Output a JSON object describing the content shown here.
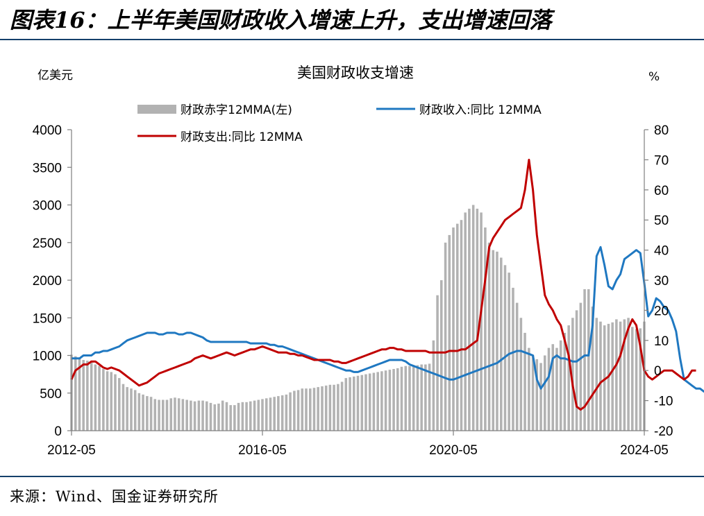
{
  "figure": {
    "title": "图表16：上半年美国财政收入增速上升，支出增速回落",
    "source": "来源：Wind、国金证券研究所"
  },
  "chart_data": {
    "type": "bar+line",
    "title": "美国财政收支增速",
    "ylabel_left": "亿美元",
    "ylabel_right": "%",
    "ylim_left": [
      0,
      4000
    ],
    "ylim_right": [
      -20,
      80
    ],
    "yticks_left": [
      "0",
      "500",
      "1000",
      "1500",
      "2000",
      "2500",
      "3000",
      "3500",
      "4000"
    ],
    "yticks_right": [
      "-20",
      "-10",
      "0",
      "10",
      "20",
      "30",
      "40",
      "50",
      "60",
      "70",
      "80"
    ],
    "xticks": [
      "2012-05",
      "2016-05",
      "2020-05",
      "2024-05"
    ],
    "legend": [
      "财政赤字12MMA(左)",
      "财政收入:同比 12MMA",
      "财政支出:同比 12MMA"
    ],
    "legend_position": "top",
    "colors": {
      "deficit": "#b2b2b2",
      "revenue": "#1f78c1",
      "spending": "#c00000"
    },
    "series": [
      {
        "name": "财政赤字12MMA(左)",
        "axis": "left",
        "type": "bar",
        "start": "2012-05",
        "values": [
          1010,
          990,
          960,
          940,
          930,
          920,
          880,
          860,
          820,
          790,
          780,
          750,
          700,
          620,
          580,
          560,
          540,
          500,
          480,
          460,
          450,
          420,
          410,
          410,
          410,
          430,
          440,
          430,
          420,
          410,
          400,
          390,
          400,
          400,
          390,
          370,
          350,
          360,
          400,
          380,
          340,
          340,
          370,
          380,
          380,
          390,
          400,
          410,
          420,
          430,
          440,
          450,
          460,
          470,
          480,
          510,
          530,
          540,
          560,
          560,
          560,
          570,
          580,
          590,
          600,
          610,
          610,
          620,
          650,
          700,
          710,
          720,
          730,
          740,
          750,
          760,
          770,
          780,
          790,
          800,
          810,
          820,
          830,
          850,
          860,
          860,
          870,
          870,
          880,
          880,
          890,
          1200,
          1800,
          2000,
          2500,
          2600,
          2700,
          2750,
          2800,
          2900,
          2950,
          3000,
          2950,
          2900,
          2700,
          2500,
          2400,
          2380,
          2300,
          2200,
          2100,
          1900,
          1700,
          1500,
          1300,
          1100,
          1000,
          950,
          900,
          1000,
          1100,
          1150,
          1100,
          1200,
          1300,
          1400,
          1500,
          1600,
          1700,
          1880,
          1880,
          1650,
          1500,
          1450,
          1400,
          1420,
          1440,
          1480,
          1450,
          1480,
          1500,
          1380,
          1350,
          1360,
          1450
        ]
      },
      {
        "name": "财政收入:同比 12MMA",
        "axis": "right",
        "type": "line",
        "start": "2012-05",
        "values": [
          4,
          4,
          4,
          5,
          5,
          5,
          6,
          6,
          6.5,
          6.5,
          7,
          7.5,
          8,
          9,
          10,
          10.5,
          11,
          11.5,
          12,
          12.5,
          12.5,
          12.5,
          12,
          12,
          12.5,
          12.5,
          12.5,
          12,
          12,
          12.5,
          12.5,
          12,
          11.5,
          11,
          10,
          9.5,
          9.5,
          9.5,
          9.5,
          9.5,
          9.5,
          9.5,
          9.5,
          9.5,
          9.5,
          9,
          9,
          9,
          9,
          9,
          8.5,
          8.5,
          8,
          8,
          7.5,
          7,
          6.5,
          6,
          5.5,
          5,
          4.5,
          4,
          3.5,
          3,
          2.5,
          2,
          1.5,
          1,
          0.5,
          0,
          0,
          -0.5,
          -0.5,
          0,
          0.5,
          1,
          1.5,
          2,
          2.5,
          3,
          3.5,
          3.5,
          3.5,
          3.5,
          3,
          2,
          1.5,
          1,
          0.5,
          0,
          -0.5,
          -1,
          -1.5,
          -2,
          -2.5,
          -3,
          -3,
          -2.5,
          -2,
          -1.5,
          -1,
          -0.5,
          0,
          0.5,
          1,
          1.5,
          2,
          2.5,
          3.5,
          4.5,
          5.5,
          6,
          6.5,
          6.5,
          6,
          5.5,
          5,
          -3,
          -6,
          -4,
          -2,
          4,
          5,
          4,
          4,
          3.5,
          3,
          3,
          4,
          5,
          5,
          15,
          38,
          41,
          35,
          28,
          27,
          30,
          32,
          37,
          38,
          39,
          40,
          39,
          29,
          18,
          20,
          24,
          23,
          21,
          20,
          17,
          13,
          4,
          -3,
          -4,
          -5,
          -6,
          -6,
          -7,
          -7,
          -6,
          -5,
          -4,
          -3,
          -1,
          1,
          3,
          5
        ]
      },
      {
        "name": "财政支出:同比 12MMA",
        "axis": "right",
        "type": "line",
        "start": "2012-05",
        "values": [
          -3,
          0,
          1,
          2,
          2,
          3,
          3,
          2,
          1,
          0.5,
          1,
          0.5,
          0,
          -1,
          -2,
          -3,
          -4,
          -5,
          -4.5,
          -4,
          -3,
          -2,
          -1,
          -0.5,
          0,
          0.5,
          1,
          1.5,
          2,
          2.5,
          3,
          4,
          4.5,
          5,
          4.5,
          4,
          4.5,
          5,
          5.5,
          6,
          5.5,
          5,
          5.5,
          6,
          6.5,
          7,
          7,
          7.5,
          8,
          7.5,
          7,
          6.5,
          6,
          6,
          6,
          5.5,
          5.5,
          5,
          5,
          4.5,
          4,
          3.5,
          3.5,
          3.5,
          3.5,
          3.5,
          3,
          3,
          2.5,
          2.5,
          3,
          3.5,
          4,
          4.5,
          5,
          5.5,
          6,
          6.5,
          7,
          7,
          7.5,
          7.5,
          7,
          7,
          6.5,
          6.5,
          6.5,
          6.5,
          6.5,
          6.5,
          6,
          6,
          6,
          6,
          6,
          6.5,
          6.5,
          6.5,
          7,
          7,
          8,
          9,
          10,
          20,
          30,
          41,
          44,
          46,
          48,
          50,
          51,
          52,
          53,
          54,
          60,
          70,
          60,
          45,
          35,
          25,
          22,
          20,
          17,
          15,
          10,
          5,
          -5,
          -12,
          -13,
          -12,
          -10,
          -8,
          -6,
          -4,
          -3,
          -2,
          0,
          2,
          5,
          10,
          14,
          17,
          15,
          8,
          0,
          -2,
          -3,
          -2,
          -1,
          0,
          0,
          0,
          -1,
          -2,
          -3,
          -2,
          0,
          0
        ]
      }
    ]
  }
}
